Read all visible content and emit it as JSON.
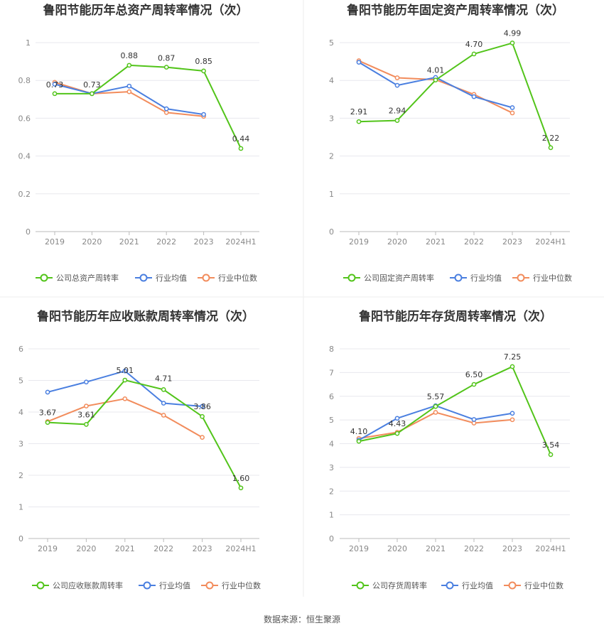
{
  "source_label": "数据来源：恒生聚源",
  "colors": {
    "company": "#52c41a",
    "avg": "#4a7fe0",
    "median": "#f28c5c",
    "grid": "#e8e8ee",
    "axis": "#bbbbbb",
    "divider": "#eeeeee"
  },
  "chart_data": [
    {
      "type": "line",
      "title": "鲁阳节能历年总资产周转率情况（次）",
      "categories": [
        "2019",
        "2020",
        "2021",
        "2022",
        "2023",
        "2024H1"
      ],
      "ylim": [
        0,
        1
      ],
      "yticks": [
        0,
        0.2,
        0.4,
        0.6,
        0.8,
        1
      ],
      "series": [
        {
          "name": "公司总资产周转率",
          "key": "company",
          "values": [
            0.73,
            0.73,
            0.88,
            0.87,
            0.85,
            0.44
          ],
          "labels": [
            "0.73",
            "0.73",
            "0.88",
            "0.87",
            "0.85",
            "0.44"
          ]
        },
        {
          "name": "行业均值",
          "key": "avg",
          "values": [
            0.78,
            0.73,
            0.77,
            0.65,
            0.62,
            null
          ]
        },
        {
          "name": "行业中位数",
          "key": "median",
          "values": [
            0.79,
            0.73,
            0.74,
            0.63,
            0.61,
            null
          ]
        }
      ]
    },
    {
      "type": "line",
      "title": "鲁阳节能历年固定资产周转率情况（次）",
      "categories": [
        "2019",
        "2020",
        "2021",
        "2022",
        "2023",
        "2024H1"
      ],
      "ylim": [
        0,
        5
      ],
      "yticks": [
        0,
        1,
        2,
        3,
        4,
        5
      ],
      "series": [
        {
          "name": "公司固定资产周转率",
          "key": "company",
          "values": [
            2.91,
            2.94,
            4.01,
            4.7,
            4.99,
            2.22
          ],
          "labels": [
            "2.91",
            "2.94",
            "4.01",
            "4.70",
            "4.99",
            "2.22"
          ]
        },
        {
          "name": "行业均值",
          "key": "avg",
          "values": [
            4.48,
            3.87,
            4.08,
            3.57,
            3.28,
            null
          ]
        },
        {
          "name": "行业中位数",
          "key": "median",
          "values": [
            4.52,
            4.07,
            4.02,
            3.63,
            3.14,
            null
          ]
        }
      ]
    },
    {
      "type": "line",
      "title": "鲁阳节能历年应收账款周转率情况（次）",
      "categories": [
        "2019",
        "2020",
        "2021",
        "2022",
        "2023",
        "2024H1"
      ],
      "ylim": [
        0,
        6
      ],
      "yticks": [
        0,
        1,
        2,
        3,
        4,
        5,
        6
      ],
      "series": [
        {
          "name": "公司应收账款周转率",
          "key": "company",
          "values": [
            3.67,
            3.61,
            5.01,
            4.71,
            3.86,
            1.6
          ],
          "labels": [
            "3.67",
            "3.61",
            "5.01",
            "4.71",
            "3.86",
            "1.60"
          ]
        },
        {
          "name": "行业均值",
          "key": "avg",
          "values": [
            4.63,
            4.95,
            5.3,
            4.28,
            4.18,
            null
          ]
        },
        {
          "name": "行业中位数",
          "key": "median",
          "values": [
            3.7,
            4.19,
            4.42,
            3.9,
            3.2,
            null
          ]
        }
      ]
    },
    {
      "type": "line",
      "title": "鲁阳节能历年存货周转率情况（次）",
      "categories": [
        "2019",
        "2020",
        "2021",
        "2022",
        "2023",
        "2024H1"
      ],
      "ylim": [
        0,
        8
      ],
      "yticks": [
        0,
        1,
        2,
        3,
        4,
        5,
        6,
        7,
        8
      ],
      "series": [
        {
          "name": "公司存货周转率",
          "key": "company",
          "values": [
            4.1,
            4.43,
            5.57,
            6.5,
            7.25,
            3.54
          ],
          "labels": [
            "4.10",
            "4.43",
            "5.57",
            "6.50",
            "7.25",
            "3.54"
          ]
        },
        {
          "name": "行业均值",
          "key": "avg",
          "values": [
            4.15,
            5.07,
            5.6,
            5.02,
            5.28,
            null
          ]
        },
        {
          "name": "行业中位数",
          "key": "median",
          "values": [
            4.22,
            4.48,
            5.32,
            4.87,
            5.01,
            null
          ]
        }
      ]
    }
  ]
}
